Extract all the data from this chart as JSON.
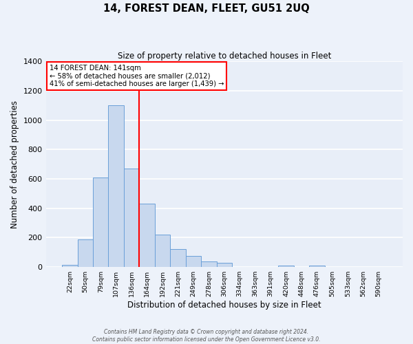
{
  "title": "14, FOREST DEAN, FLEET, GU51 2UQ",
  "subtitle": "Size of property relative to detached houses in Fleet",
  "xlabel": "Distribution of detached houses by size in Fleet",
  "ylabel": "Number of detached properties",
  "bar_color": "#c8d8ee",
  "bar_edge_color": "#6a9fd8",
  "background_color": "#e8eef8",
  "fig_background_color": "#edf2fa",
  "grid_color": "#ffffff",
  "categories": [
    "22sqm",
    "50sqm",
    "79sqm",
    "107sqm",
    "136sqm",
    "164sqm",
    "192sqm",
    "221sqm",
    "249sqm",
    "278sqm",
    "306sqm",
    "334sqm",
    "363sqm",
    "391sqm",
    "420sqm",
    "448sqm",
    "476sqm",
    "505sqm",
    "533sqm",
    "562sqm",
    "590sqm"
  ],
  "values": [
    15,
    190,
    610,
    1100,
    670,
    430,
    220,
    120,
    75,
    40,
    30,
    0,
    0,
    0,
    10,
    0,
    10,
    0,
    0,
    0,
    0
  ],
  "ylim": [
    0,
    1400
  ],
  "yticks": [
    0,
    200,
    400,
    600,
    800,
    1000,
    1200,
    1400
  ],
  "property_label": "14 FOREST DEAN: 141sqm",
  "annotation_line1": "← 58% of detached houses are smaller (2,012)",
  "annotation_line2": "41% of semi-detached houses are larger (1,439) →",
  "red_line_bin_index": 4,
  "footer_line1": "Contains HM Land Registry data © Crown copyright and database right 2024.",
  "footer_line2": "Contains public sector information licensed under the Open Government Licence v3.0."
}
